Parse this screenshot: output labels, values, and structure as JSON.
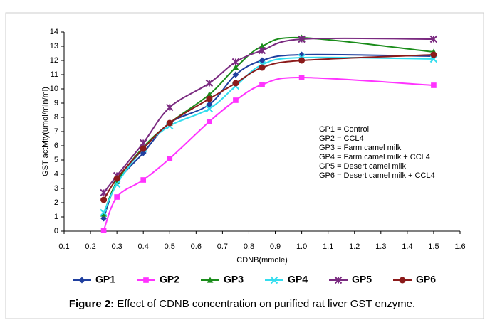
{
  "chart_data": {
    "type": "line",
    "x_label": "CDNB(mmole)",
    "y_label": "GST activity(umol/min/ml)",
    "x": [
      0.25,
      0.3,
      0.4,
      0.5,
      0.65,
      0.75,
      0.85,
      1.0,
      1.5
    ],
    "xlim": [
      0.1,
      1.6
    ],
    "xticks": [
      0.1,
      0.2,
      0.3,
      0.4,
      0.5,
      0.6,
      0.7,
      0.8,
      0.9,
      {
        "value": 1,
        "label": "1.0"
      },
      1.1,
      1.2,
      1.3,
      1.4,
      1.5,
      1.6
    ],
    "ylim": [
      0,
      14
    ],
    "yticks": [
      0,
      1,
      2,
      3,
      4,
      5,
      6,
      7,
      8,
      9,
      10,
      11,
      12,
      13,
      14
    ],
    "grid": false,
    "legend_position": "bottom",
    "series": [
      {
        "name": "GP1",
        "color": "#1f3f9f",
        "marker": "diamond",
        "values": [
          0.9,
          3.4,
          5.5,
          7.6,
          8.9,
          11,
          12,
          12.4,
          12.3
        ]
      },
      {
        "name": "GP2",
        "color": "#ff33ff",
        "marker": "square",
        "values": [
          0.05,
          2.4,
          3.6,
          5.1,
          7.7,
          9.2,
          10.3,
          10.8,
          10.25
        ]
      },
      {
        "name": "GP3",
        "color": "#1a8c1a",
        "marker": "triangle",
        "values": [
          1.2,
          3.5,
          5.9,
          7.6,
          9.6,
          11.5,
          13,
          13.6,
          12.6
        ]
      },
      {
        "name": "GP4",
        "color": "#33ddee",
        "marker": "x",
        "values": [
          1.3,
          3.3,
          5.8,
          7.4,
          8.6,
          10.2,
          11.7,
          12.2,
          12.1
        ]
      },
      {
        "name": "GP5",
        "color": "#7a2a80",
        "marker": "star",
        "values": [
          2.7,
          3.9,
          6.2,
          8.7,
          10.4,
          11.9,
          12.7,
          13.5,
          13.5
        ]
      },
      {
        "name": "GP6",
        "color": "#8b1a1a",
        "marker": "circle",
        "values": [
          2.2,
          3.7,
          5.8,
          7.6,
          9.3,
          10.4,
          11.5,
          12.0,
          12.4
        ]
      }
    ],
    "annotations": [
      "GP1 = Control",
      "GP2 = CCL4",
      "GP3 = Farm camel milk",
      "GP4 = Farm camel milk + CCL4",
      "GP5 = Desert camel milk",
      "GP6 = Desert camel milk + CCL4"
    ],
    "caption_label": "Figure 2:",
    "caption": "Effect of CDNB concentration on purified rat liver GST enzyme."
  }
}
